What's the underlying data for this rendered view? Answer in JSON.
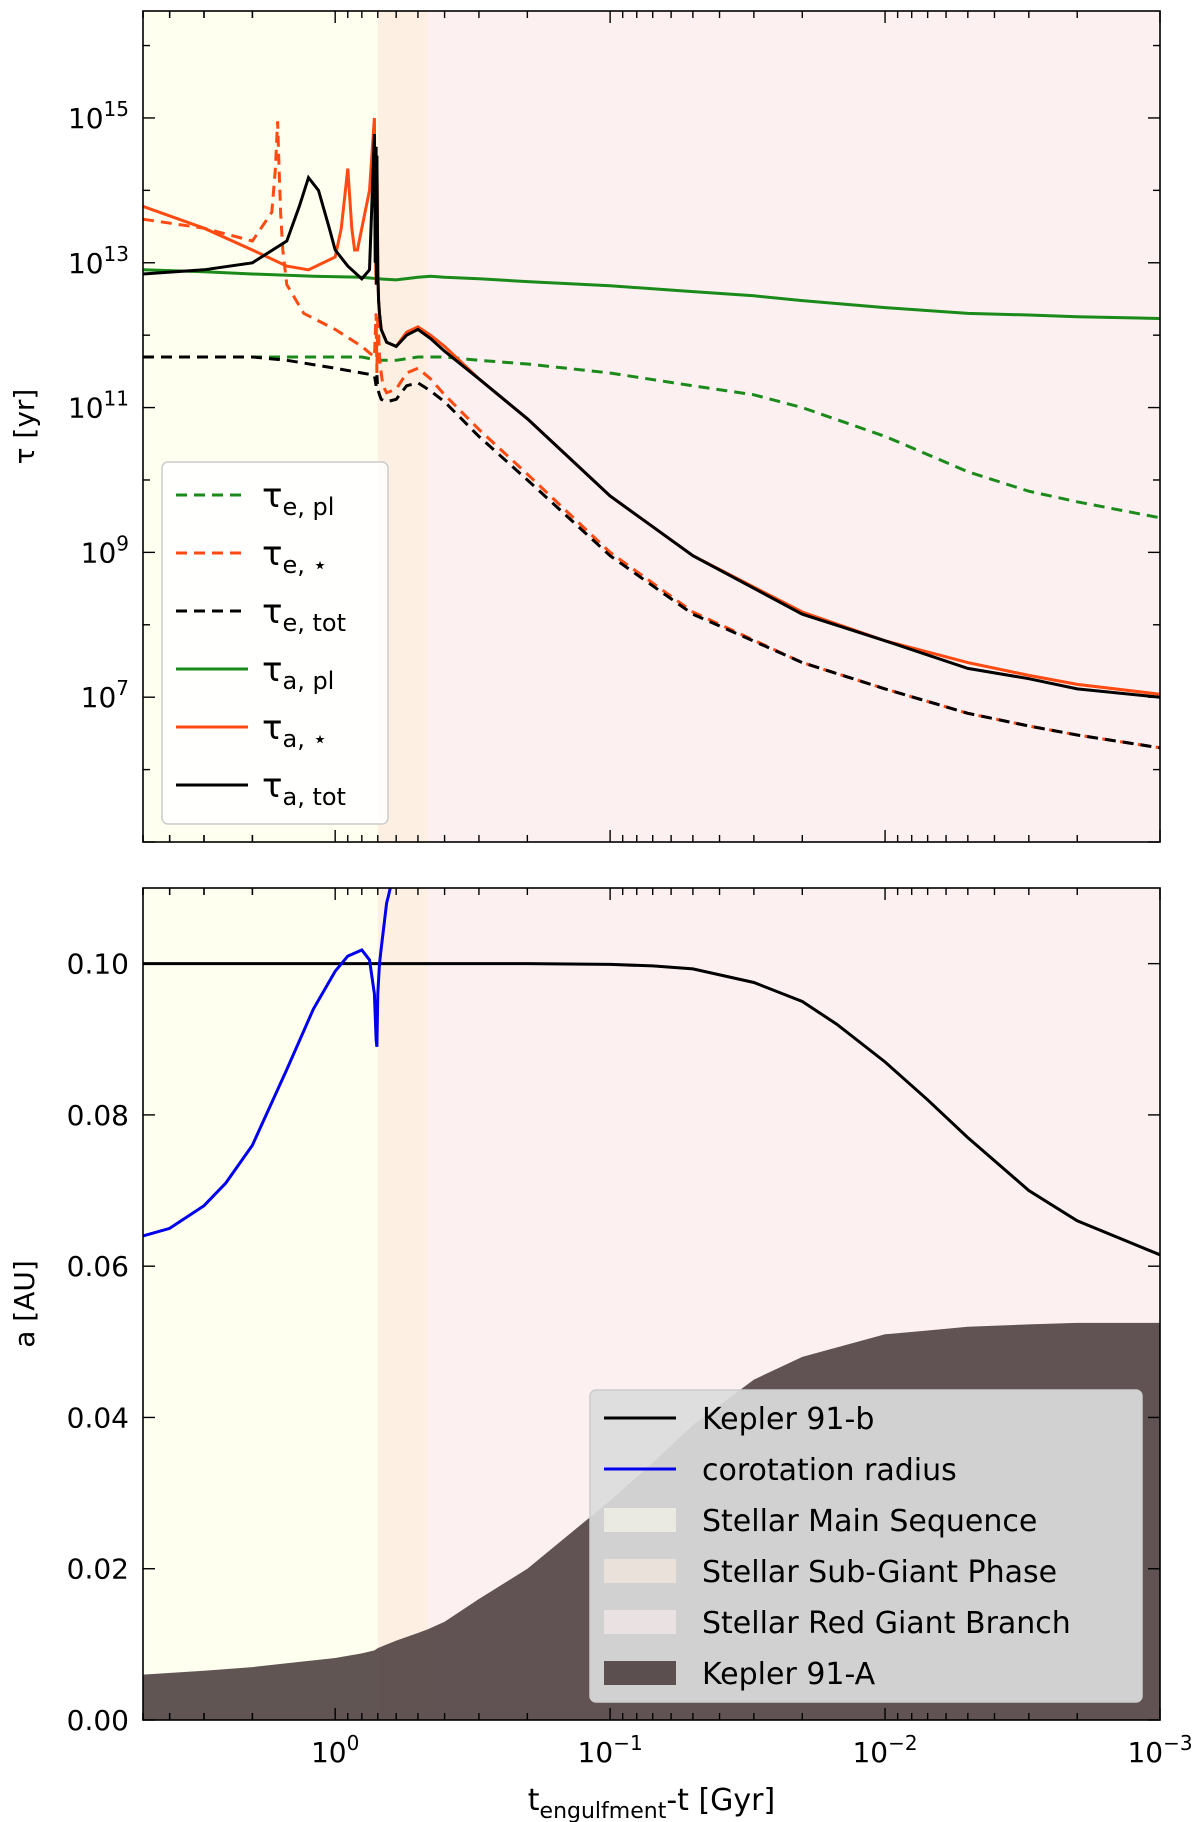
{
  "chart_data": [
    {
      "type": "line",
      "panel": "top",
      "x_scale": "log-reversed",
      "y_scale": "log",
      "xlim": [
        5,
        0.001
      ],
      "ylim": [
        100000,
        3e+16
      ],
      "ylabel": "τ [yr]",
      "y_ticks": [
        {
          "value": 10000000.0,
          "mant": "10",
          "exp": "7"
        },
        {
          "value": 1000000000.0,
          "mant": "10",
          "exp": "9"
        },
        {
          "value": 100000000000.0,
          "mant": "10",
          "exp": "11"
        },
        {
          "value": 10000000000000.0,
          "mant": "10",
          "exp": "13"
        },
        {
          "value": 1000000000000000.0,
          "mant": "10",
          "exp": "15"
        }
      ],
      "phases": [
        {
          "name": "Stellar Main Sequence",
          "from": 5,
          "to": 0.7,
          "color": "#fffff0"
        },
        {
          "name": "Stellar Sub-Giant Phase",
          "from": 0.7,
          "to": 0.46,
          "color": "#fdf0e2"
        },
        {
          "name": "Stellar Red Giant Branch",
          "from": 0.46,
          "to": 0.001,
          "color": "#fdf0f0"
        }
      ],
      "legend": {
        "placement": "center-left",
        "entries": [
          {
            "base": "τ",
            "sub": "e, pl",
            "color": "#1a8a1a",
            "dash": true
          },
          {
            "base": "τ",
            "sub": "e, ⋆",
            "color": "#ff4a12",
            "dash": true
          },
          {
            "base": "τ",
            "sub": "e, tot",
            "color": "#000000",
            "dash": true
          },
          {
            "base": "τ",
            "sub": "a, pl",
            "color": "#1a8a1a",
            "dash": false
          },
          {
            "base": "τ",
            "sub": "a, ⋆",
            "color": "#ff4a12",
            "dash": false
          },
          {
            "base": "τ",
            "sub": "a, tot",
            "color": "#000000",
            "dash": false
          }
        ]
      },
      "series": [
        {
          "name": "τe, pl",
          "color": "#1a8a1a",
          "dash": true,
          "x": [
            5,
            3,
            2,
            1.2,
            0.8,
            0.7,
            0.6,
            0.5,
            0.4,
            0.3,
            0.2,
            0.1,
            0.05,
            0.03,
            0.02,
            0.01,
            0.005,
            0.003,
            0.002,
            0.001
          ],
          "y": [
            500000000000.0,
            500000000000.0,
            500000000000.0,
            500000000000.0,
            500000000000.0,
            450000000000.0,
            450000000000.0,
            500000000000.0,
            500000000000.0,
            450000000000.0,
            400000000000.0,
            300000000000.0,
            200000000000.0,
            150000000000.0,
            100000000000.0,
            40000000000.0,
            13000000000.0,
            7000000000.0,
            5000000000.0,
            3000000000.0
          ]
        },
        {
          "name": "τe, ⋆",
          "color": "#ff4a12",
          "dash": true,
          "x": [
            5,
            3,
            2,
            1.7,
            1.65,
            1.62,
            1.6,
            1.58,
            1.55,
            1.5,
            1.3,
            1.0,
            0.8,
            0.72,
            0.71,
            0.705,
            0.7,
            0.69,
            0.68,
            0.67,
            0.65,
            0.6,
            0.55,
            0.5,
            0.45,
            0.4,
            0.3,
            0.2,
            0.1,
            0.05,
            0.02,
            0.01,
            0.005,
            0.003,
            0.002,
            0.001
          ],
          "y": [
            40000000000000.0,
            30000000000000.0,
            20000000000000.0,
            50000000000000.0,
            200000000000000.0,
            900000000000000.0,
            200000000000000.0,
            50000000000000.0,
            15000000000000.0,
            5000000000000.0,
            2000000000000.0,
            1200000000000.0,
            700000000000.0,
            500000000000.0,
            2000000000000.0,
            300000000000.0,
            2000000000000.0,
            500000000000.0,
            300000000000.0,
            200000000000.0,
            160000000000.0,
            180000000000.0,
            300000000000.0,
            350000000000.0,
            250000000000.0,
            150000000000.0,
            50000000000.0,
            12000000000.0,
            1000000000.0,
            150000000.0,
            30000000.0,
            13000000.0,
            6000000.0,
            4000000.0,
            3000000.0,
            2000000.0
          ]
        },
        {
          "name": "τe, tot",
          "color": "#000000",
          "dash": true,
          "x": [
            5,
            3,
            2,
            1.5,
            1.0,
            0.8,
            0.72,
            0.71,
            0.705,
            0.7,
            0.69,
            0.68,
            0.65,
            0.6,
            0.55,
            0.5,
            0.45,
            0.4,
            0.3,
            0.2,
            0.1,
            0.05,
            0.02,
            0.01,
            0.005,
            0.003,
            0.002,
            0.001
          ],
          "y": [
            500000000000.0,
            500000000000.0,
            500000000000.0,
            450000000000.0,
            350000000000.0,
            300000000000.0,
            280000000000.0,
            200000000000.0,
            280000000000.0,
            180000000000.0,
            150000000000.0,
            130000000000.0,
            120000000000.0,
            130000000000.0,
            200000000000.0,
            220000000000.0,
            170000000000.0,
            120000000000.0,
            40000000000.0,
            10000000000.0,
            900000000.0,
            140000000.0,
            30000000.0,
            13000000.0,
            6000000.0,
            4000000.0,
            3000000.0,
            2000000.0
          ]
        },
        {
          "name": "τa, pl",
          "color": "#1a8a1a",
          "dash": false,
          "x": [
            5,
            3,
            2,
            1.2,
            0.8,
            0.7,
            0.6,
            0.5,
            0.45,
            0.4,
            0.3,
            0.2,
            0.1,
            0.05,
            0.03,
            0.02,
            0.01,
            0.005,
            0.003,
            0.002,
            0.001
          ],
          "y": [
            8000000000000.0,
            7500000000000.0,
            7000000000000.0,
            6500000000000.0,
            6300000000000.0,
            6000000000000.0,
            5800000000000.0,
            6300000000000.0,
            6500000000000.0,
            6300000000000.0,
            6000000000000.0,
            5500000000000.0,
            4800000000000.0,
            4000000000000.0,
            3500000000000.0,
            3000000000000.0,
            2400000000000.0,
            2000000000000.0,
            1900000000000.0,
            1800000000000.0,
            1700000000000.0
          ]
        },
        {
          "name": "τa, ⋆",
          "color": "#ff4a12",
          "dash": false,
          "x": [
            5,
            3,
            2,
            1.5,
            1.25,
            1.0,
            0.95,
            0.9,
            0.87,
            0.85,
            0.83,
            0.8,
            0.75,
            0.72,
            0.715,
            0.71,
            0.705,
            0.7,
            0.695,
            0.69,
            0.68,
            0.65,
            0.6,
            0.55,
            0.5,
            0.45,
            0.4,
            0.3,
            0.2,
            0.1,
            0.05,
            0.02,
            0.01,
            0.005,
            0.003,
            0.002,
            0.001
          ],
          "y": [
            60000000000000.0,
            30000000000000.0,
            15000000000000.0,
            9000000000000.0,
            8000000000000.0,
            12000000000000.0,
            30000000000000.0,
            200000000000000.0,
            30000000000000.0,
            15000000000000.0,
            15000000000000.0,
            30000000000000.0,
            100000000000000.0,
            1000000000000000.0,
            30000000000000.0,
            5000000000000.0,
            300000000000000.0,
            8000000000000.0,
            3000000000000.0,
            2000000000000.0,
            1200000000000.0,
            800000000000.0,
            700000000000.0,
            1100000000000.0,
            1300000000000.0,
            1000000000000.0,
            700000000000.0,
            250000000000.0,
            70000000000.0,
            6000000000.0,
            900000000.0,
            150000000.0,
            60000000.0,
            30000000.0,
            20000000.0,
            15000000.0,
            11000000.0
          ]
        },
        {
          "name": "τa, tot",
          "color": "#000000",
          "dash": false,
          "x": [
            5,
            3,
            2,
            1.5,
            1.35,
            1.25,
            1.15,
            1.05,
            1.0,
            0.9,
            0.8,
            0.75,
            0.72,
            0.715,
            0.71,
            0.708,
            0.705,
            0.7,
            0.695,
            0.69,
            0.68,
            0.65,
            0.6,
            0.55,
            0.5,
            0.45,
            0.4,
            0.3,
            0.2,
            0.1,
            0.05,
            0.02,
            0.01,
            0.005,
            0.003,
            0.002,
            0.001
          ],
          "y": [
            7000000000000.0,
            8000000000000.0,
            10000000000000.0,
            20000000000000.0,
            60000000000000.0,
            150000000000000.0,
            100000000000000.0,
            30000000000000.0,
            15000000000000.0,
            9000000000000.0,
            6000000000000.0,
            8000000000000.0,
            600000000000000.0,
            10000000000000.0,
            400000000000000.0,
            5000000000000.0,
            300000000000000.0,
            7000000000000.0,
            3000000000000.0,
            2000000000000.0,
            1200000000000.0,
            800000000000.0,
            700000000000.0,
            1000000000000.0,
            1200000000000.0,
            900000000000.0,
            600000000000.0,
            250000000000.0,
            70000000000.0,
            6000000000.0,
            900000000.0,
            140000000.0,
            60000000.0,
            25000000.0,
            18000000.0,
            13000000.0,
            10000000.0
          ]
        }
      ]
    },
    {
      "type": "line",
      "panel": "bottom",
      "x_scale": "log-reversed",
      "xlim": [
        5,
        0.001
      ],
      "ylim": [
        0,
        0.11
      ],
      "xlabel_base": "t",
      "xlabel_sub": "engulfment",
      "xlabel_rest": "-t [Gyr]",
      "ylabel": "a [AU]",
      "y_ticks": [
        "0.00",
        "0.02",
        "0.04",
        "0.06",
        "0.08",
        "0.10"
      ],
      "x_ticks": [
        {
          "value": 1,
          "mant": "10",
          "exp": "0"
        },
        {
          "value": 0.1,
          "mant": "10",
          "exp": "−1"
        },
        {
          "value": 0.01,
          "mant": "10",
          "exp": "−2"
        },
        {
          "value": 0.001,
          "mant": "10",
          "exp": "−3"
        }
      ],
      "legend": {
        "placement": "lower-right",
        "entries": [
          {
            "label": "Kepler 91-b",
            "kind": "line",
            "color": "#000000"
          },
          {
            "label": "corotation radius",
            "kind": "line",
            "color": "#0000ee"
          },
          {
            "label": "Stellar Main Sequence",
            "kind": "patch",
            "color": "#fffff0"
          },
          {
            "label": "Stellar Sub-Giant Phase",
            "kind": "patch",
            "color": "#fdf0e2"
          },
          {
            "label": "Stellar Red Giant Branch",
            "kind": "patch",
            "color": "#fdf0f0"
          },
          {
            "label": "Kepler 91-A",
            "kind": "patch",
            "color": "#4a3c3c"
          }
        ]
      },
      "series": [
        {
          "name": "Kepler 91-b",
          "color": "#000000",
          "x": [
            5,
            2,
            1,
            0.5,
            0.2,
            0.1,
            0.07,
            0.05,
            0.03,
            0.02,
            0.015,
            0.01,
            0.007,
            0.005,
            0.003,
            0.002,
            0.001
          ],
          "y": [
            0.1,
            0.1,
            0.1,
            0.1,
            0.1,
            0.0999,
            0.0997,
            0.0993,
            0.0975,
            0.095,
            0.092,
            0.087,
            0.082,
            0.077,
            0.07,
            0.066,
            0.0615
          ]
        },
        {
          "name": "corotation radius",
          "color": "#0000ee",
          "x": [
            5,
            4,
            3,
            2.5,
            2,
            1.5,
            1.2,
            1.0,
            0.9,
            0.8,
            0.75,
            0.72,
            0.71,
            0.705,
            0.7,
            0.69,
            0.68,
            0.67,
            0.66,
            0.65,
            0.64,
            0.63
          ],
          "y": [
            0.064,
            0.065,
            0.068,
            0.071,
            0.076,
            0.086,
            0.094,
            0.099,
            0.101,
            0.1018,
            0.1005,
            0.096,
            0.09,
            0.089,
            0.096,
            0.1,
            0.102,
            0.104,
            0.106,
            0.108,
            0.109,
            0.11
          ]
        },
        {
          "name": "Kepler 91-A",
          "color": "#4a3c3c",
          "fill": true,
          "x": [
            5,
            3,
            2,
            1.5,
            1,
            0.8,
            0.72,
            0.7,
            0.6,
            0.5,
            0.46,
            0.4,
            0.3,
            0.2,
            0.1,
            0.07,
            0.05,
            0.03,
            0.02,
            0.01,
            0.007,
            0.005,
            0.003,
            0.002,
            0.001
          ],
          "y": [
            0.006,
            0.0065,
            0.007,
            0.0075,
            0.0082,
            0.0088,
            0.0092,
            0.0095,
            0.0105,
            0.0115,
            0.012,
            0.013,
            0.016,
            0.02,
            0.029,
            0.034,
            0.039,
            0.045,
            0.048,
            0.051,
            0.0515,
            0.052,
            0.0523,
            0.0525,
            0.0525
          ]
        }
      ]
    }
  ]
}
